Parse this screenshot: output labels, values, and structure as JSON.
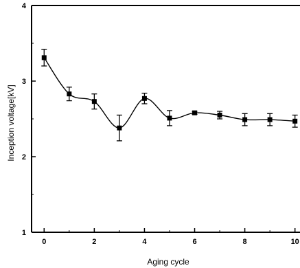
{
  "chart_data": {
    "type": "line",
    "xlabel": "Aging cycle",
    "ylabel": "Inception voltage[kV]",
    "xlim": [
      -0.5,
      10.2
    ],
    "ylim": [
      1,
      4
    ],
    "x_ticks": [
      0,
      2,
      4,
      6,
      8,
      10
    ],
    "y_ticks": [
      1,
      2,
      3,
      4
    ],
    "grid": false,
    "legend": "none",
    "series": [
      {
        "x": [
          0,
          1,
          2,
          3,
          4,
          5,
          6,
          7,
          8,
          9,
          10
        ],
        "y": [
          3.31,
          2.83,
          2.73,
          2.38,
          2.77,
          2.51,
          2.58,
          2.55,
          2.49,
          2.49,
          2.47
        ],
        "error": [
          0.11,
          0.09,
          0.1,
          0.17,
          0.07,
          0.1,
          0.02,
          0.05,
          0.08,
          0.08,
          0.08
        ],
        "marker": "square",
        "color": "#000000"
      }
    ]
  }
}
